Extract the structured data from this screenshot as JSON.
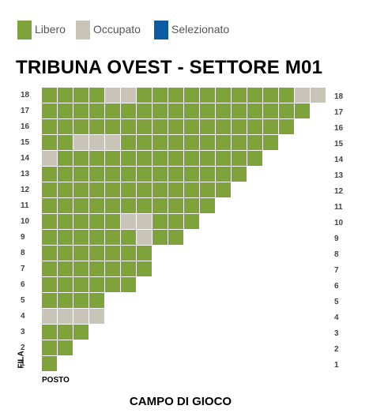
{
  "legend": [
    {
      "label": "Libero",
      "color": "#7ea33a"
    },
    {
      "label": "Occupato",
      "color": "#c8c4b8"
    },
    {
      "label": "Selezionato",
      "color": "#0b5aa3"
    }
  ],
  "title": "TRIBUNA OVEST - SETTORE M01",
  "axis": {
    "fila": "FILA",
    "posto": "POSTO",
    "campo": "CAMPO DI GIOCO"
  },
  "rows": [
    {
      "row": "18",
      "seats": 18,
      "occupied": [
        5,
        6,
        17,
        18
      ]
    },
    {
      "row": "17",
      "seats": 17,
      "occupied": []
    },
    {
      "row": "16",
      "seats": 16,
      "occupied": []
    },
    {
      "row": "15",
      "seats": 15,
      "occupied": [
        3,
        4,
        5
      ]
    },
    {
      "row": "14",
      "seats": 14,
      "occupied": [
        1
      ]
    },
    {
      "row": "13",
      "seats": 13,
      "occupied": []
    },
    {
      "row": "12",
      "seats": 12,
      "occupied": []
    },
    {
      "row": "11",
      "seats": 11,
      "occupied": []
    },
    {
      "row": "10",
      "seats": 10,
      "occupied": [
        6,
        7
      ]
    },
    {
      "row": "9",
      "seats": 9,
      "occupied": [
        7
      ]
    },
    {
      "row": "8",
      "seats": 7,
      "occupied": []
    },
    {
      "row": "7",
      "seats": 7,
      "occupied": []
    },
    {
      "row": "6",
      "seats": 6,
      "occupied": []
    },
    {
      "row": "5",
      "seats": 4,
      "occupied": []
    },
    {
      "row": "4",
      "seats": 4,
      "occupied": [
        1,
        2,
        3,
        4
      ]
    },
    {
      "row": "3",
      "seats": 3,
      "occupied": []
    },
    {
      "row": "2",
      "seats": 2,
      "occupied": []
    },
    {
      "row": "1",
      "seats": 1,
      "occupied": []
    }
  ]
}
